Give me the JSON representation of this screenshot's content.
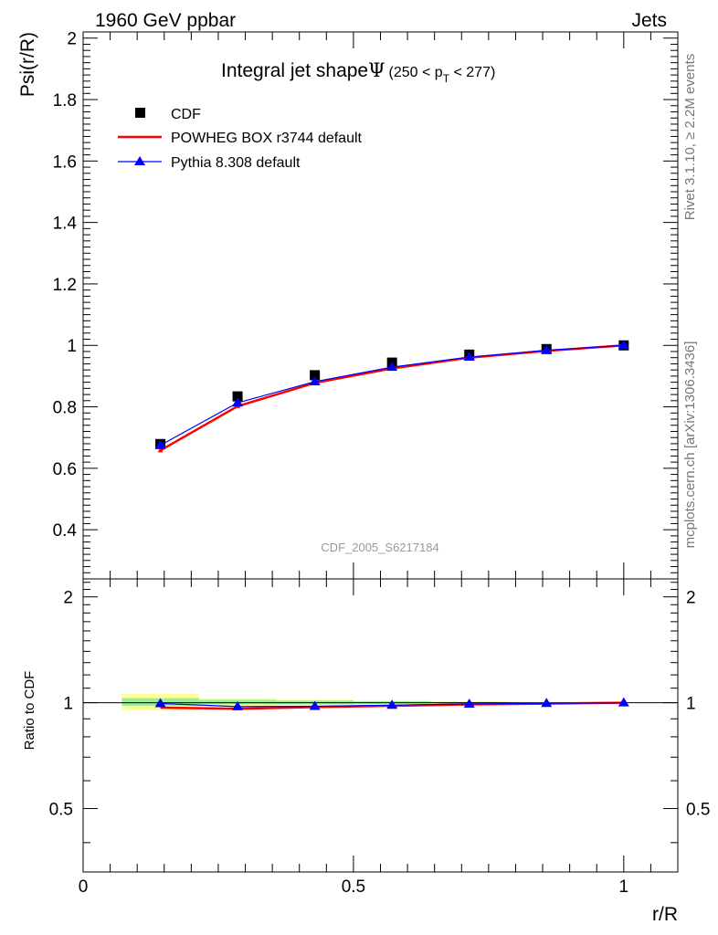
{
  "header": {
    "left": "1960 GeV ppbar",
    "right": "Jets"
  },
  "side_text": {
    "upper": "Rivet 3.1.10, ≥ 2.2M events",
    "lower": "mcplots.cern.ch [arXiv:1306.3436]"
  },
  "watermark": "CDF_2005_S6217184",
  "chart_data": {
    "type": "line",
    "title": "Integral jet shape",
    "title_symbol": "Ψ",
    "title_range": "(250 < p",
    "title_range_sub": "T",
    "title_range_end": " < 277)",
    "xlabel": "r/R",
    "ylabel": "Psi(r/R)",
    "ratio_ylabel": "Ratio to CDF",
    "xlim": [
      0,
      1.1
    ],
    "ylim": [
      0.24,
      2.02
    ],
    "ratio_ylim": [
      0.33,
      2.25
    ],
    "x_ticks": [
      "0",
      "0.5",
      "1"
    ],
    "x_tick_values": [
      0,
      0.5,
      1
    ],
    "y_ticks": [
      "0.4",
      "0.6",
      "0.8",
      "1",
      "1.2",
      "1.4",
      "1.6",
      "1.8",
      "2"
    ],
    "y_tick_values": [
      0.4,
      0.6,
      0.8,
      1.0,
      1.2,
      1.4,
      1.6,
      1.8,
      2.0
    ],
    "ratio_ticks": [
      "0.5",
      "1",
      "2"
    ],
    "ratio_tick_values": [
      0.5,
      1,
      2
    ],
    "x": [
      0.1429,
      0.2857,
      0.4286,
      0.5714,
      0.7143,
      0.8571,
      1.0
    ],
    "series": [
      {
        "name": "CDF",
        "color": "#000000",
        "marker": "square",
        "values": [
          0.679,
          0.834,
          0.903,
          0.944,
          0.97,
          0.988,
          1.0
        ]
      },
      {
        "name": "POWHEG BOX r3744 default",
        "color": "#ff0000",
        "marker": "none",
        "values": [
          0.658,
          0.802,
          0.878,
          0.925,
          0.96,
          0.982,
          1.0
        ]
      },
      {
        "name": "Pythia 8.308 default",
        "color": "#0000ff",
        "marker": "triangle",
        "values": [
          0.675,
          0.813,
          0.882,
          0.929,
          0.962,
          0.984,
          1.0
        ]
      }
    ],
    "ratio_series": [
      {
        "name": "POWHEG BOX r3744 default",
        "color": "#ff0000",
        "values": [
          0.968,
          0.961,
          0.972,
          0.98,
          0.989,
          0.994,
          1.0
        ]
      },
      {
        "name": "Pythia 8.308 default",
        "color": "#0000ff",
        "values": [
          0.995,
          0.975,
          0.977,
          0.984,
          0.992,
          0.996,
          1.0
        ]
      }
    ],
    "uncertainty_bands": [
      {
        "x_range": [
          0.0714,
          0.2143
        ],
        "inner": [
          0.98,
          1.03
        ],
        "outer": [
          0.95,
          1.06
        ]
      },
      {
        "x_range": [
          0.2143,
          0.3571
        ],
        "inner": [
          0.99,
          1.02
        ],
        "outer": [
          0.975,
          1.03
        ]
      },
      {
        "x_range": [
          0.3571,
          0.5
        ],
        "inner": [
          0.99,
          1.015
        ],
        "outer": [
          0.985,
          1.02
        ]
      },
      {
        "x_range": [
          0.5,
          0.6429
        ],
        "inner": [
          0.993,
          1.01
        ],
        "outer": [
          0.99,
          1.012
        ]
      },
      {
        "x_range": [
          0.6429,
          0.7857
        ],
        "inner": [
          0.995,
          1.005
        ],
        "outer": [
          0.993,
          1.008
        ]
      },
      {
        "x_range": [
          0.7857,
          0.9286
        ],
        "inner": [
          0.997,
          1.003
        ],
        "outer": [
          0.995,
          1.005
        ]
      },
      {
        "x_range": [
          0.9286,
          1.0714
        ],
        "inner": [
          0.999,
          1.001
        ],
        "outer": [
          0.998,
          1.002
        ]
      }
    ],
    "band_colors": {
      "outer": "#ffff99",
      "inner": "#99ee99"
    },
    "legend_position": "top-left",
    "grid": false
  }
}
